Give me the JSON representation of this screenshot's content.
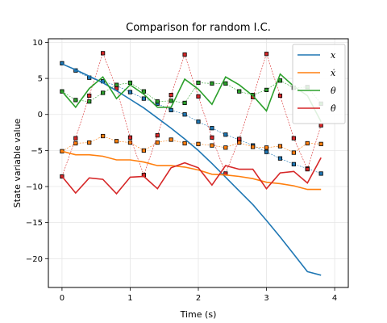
{
  "chart_data": {
    "type": "line",
    "title": "Comparison for random I.C.",
    "xlabel": "Time (s)",
    "ylabel": "State variable value",
    "xlim": [
      -0.2,
      4.2
    ],
    "ylim": [
      -24,
      10.5
    ],
    "xticks": [
      0,
      1,
      2,
      3,
      4
    ],
    "yticks": [
      -20,
      -15,
      -10,
      -5,
      0,
      5,
      10
    ],
    "grid": true,
    "legend_position": "top-right",
    "series": [
      {
        "name": "x",
        "legend_label": "x",
        "color": "#1f77b4",
        "x": [
          0,
          0.2,
          0.4,
          0.6,
          0.8,
          1.0,
          1.2,
          1.4,
          1.6,
          1.8,
          2.0,
          2.2,
          2.4,
          2.6,
          2.8,
          3.0,
          3.2,
          3.4,
          3.6,
          3.8
        ],
        "y": [
          7.0,
          6.2,
          5.3,
          4.4,
          3.3,
          2.1,
          0.9,
          -0.5,
          -1.9,
          -3.4,
          -5.0,
          -6.8,
          -8.7,
          -10.6,
          -12.5,
          -14.7,
          -17.0,
          -19.4,
          -21.8,
          -22.3
        ]
      },
      {
        "name": "x_dot",
        "legend_label": "ẋ",
        "color": "#ff7f0e",
        "x": [
          0,
          0.2,
          0.4,
          0.6,
          0.8,
          1.0,
          1.2,
          1.4,
          1.6,
          1.8,
          2.0,
          2.2,
          2.4,
          2.6,
          2.8,
          3.0,
          3.2,
          3.4,
          3.6,
          3.8
        ],
        "y": [
          -5.1,
          -5.6,
          -5.6,
          -5.8,
          -6.3,
          -6.3,
          -6.6,
          -7.1,
          -7.1,
          -7.3,
          -7.7,
          -8.3,
          -8.4,
          -8.6,
          -8.9,
          -9.4,
          -9.6,
          -9.9,
          -10.4,
          -10.4
        ]
      },
      {
        "name": "theta",
        "legend_label": "θ",
        "color": "#2ca02c",
        "x": [
          0,
          0.2,
          0.4,
          0.6,
          0.8,
          1.0,
          1.2,
          1.4,
          1.6,
          1.8,
          2.0,
          2.2,
          2.4,
          2.6,
          2.8,
          3.0,
          3.2,
          3.4,
          3.6,
          3.8
        ],
        "y": [
          3.2,
          1.0,
          3.6,
          5.2,
          2.2,
          4.1,
          2.8,
          1.0,
          1.0,
          4.9,
          3.5,
          1.4,
          5.2,
          4.1,
          2.6,
          0.5,
          5.6,
          3.9,
          2.6,
          -1.0
        ]
      },
      {
        "name": "theta_dot",
        "legend_label": "θ̇",
        "color": "#d62728",
        "x": [
          0,
          0.2,
          0.4,
          0.6,
          0.8,
          1.0,
          1.2,
          1.4,
          1.6,
          1.8,
          2.0,
          2.2,
          2.4,
          2.6,
          2.8,
          3.0,
          3.2,
          3.4,
          3.6,
          3.8
        ],
        "y": [
          -8.6,
          -10.9,
          -8.8,
          -9.0,
          -11.0,
          -8.7,
          -8.6,
          -10.3,
          -7.4,
          -6.7,
          -7.4,
          -9.8,
          -7.1,
          -7.6,
          -7.6,
          -10.3,
          -8.1,
          -7.9,
          -9.5,
          -6.0
        ]
      }
    ],
    "marker_series": [
      {
        "name": "x_markers",
        "color": "#1f77b4",
        "x": [
          0,
          0.2,
          0.4,
          0.6,
          0.8,
          1.0,
          1.2,
          1.4,
          1.6,
          1.8,
          2.0,
          2.2,
          2.4,
          2.6,
          2.8,
          3.0,
          3.2,
          3.4,
          3.6,
          3.8
        ],
        "y": [
          7.1,
          6.1,
          5.1,
          4.6,
          4.0,
          3.1,
          2.2,
          1.5,
          0.6,
          0.0,
          -1.0,
          -1.9,
          -2.8,
          -3.5,
          -4.3,
          -5.2,
          -6.1,
          -6.9,
          -7.5,
          -8.2
        ]
      },
      {
        "name": "x_dot_markers",
        "color": "#ff7f0e",
        "x": [
          0,
          0.2,
          0.4,
          0.6,
          0.8,
          1.0,
          1.2,
          1.4,
          1.6,
          1.8,
          2.0,
          2.2,
          2.4,
          2.6,
          2.8,
          3.0,
          3.2,
          3.4,
          3.6,
          3.8
        ],
        "y": [
          -5.1,
          -4.0,
          -3.9,
          -3.0,
          -3.7,
          -3.9,
          -5.0,
          -3.9,
          -3.5,
          -4.0,
          -4.1,
          -4.3,
          -4.6,
          -3.9,
          -4.5,
          -4.6,
          -4.4,
          -5.3,
          -4.0,
          -4.1
        ]
      },
      {
        "name": "theta_markers",
        "color": "#2ca02c",
        "x": [
          0,
          0.2,
          0.4,
          0.6,
          0.8,
          1.0,
          1.2,
          1.4,
          1.6,
          1.8,
          2.0,
          2.2,
          2.4,
          2.6,
          2.8,
          3.0,
          3.2,
          3.4,
          3.6,
          3.8
        ],
        "y": [
          3.2,
          2.0,
          1.8,
          3.0,
          4.1,
          4.4,
          3.2,
          1.8,
          1.9,
          1.6,
          4.4,
          4.3,
          4.3,
          3.2,
          2.7,
          3.4,
          4.7,
          3.7,
          3.8,
          1.5
        ]
      },
      {
        "name": "theta_dot_markers",
        "color": "#d62728",
        "x": [
          0,
          0.2,
          0.4,
          0.6,
          0.8,
          1.0,
          1.2,
          1.4,
          1.6,
          1.8,
          2.0,
          2.2,
          2.4,
          2.6,
          2.8,
          3.0,
          3.2,
          3.4,
          3.6,
          3.8
        ],
        "y": [
          -8.6,
          -3.3,
          2.6,
          8.5,
          3.6,
          -3.2,
          -8.4,
          -2.9,
          2.7,
          8.3,
          2.5,
          -3.2,
          -8.2,
          -3.4,
          2.4,
          8.4,
          2.6,
          -3.3,
          -7.6,
          -1.5
        ]
      }
    ]
  }
}
